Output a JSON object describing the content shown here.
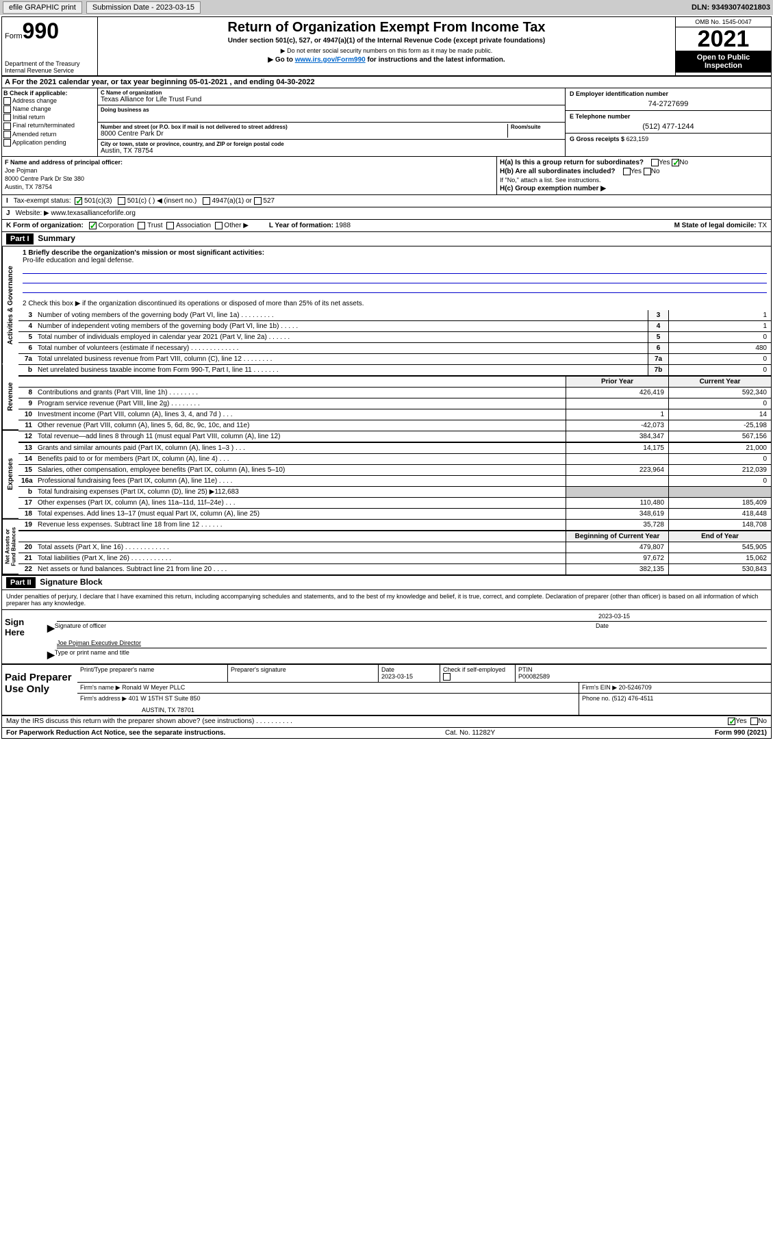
{
  "toolbar": {
    "efile": "efile GRAPHIC print",
    "subdate_lbl": "Submission Date - 2023-03-15",
    "dln": "DLN: 93493074021803"
  },
  "header": {
    "form_word": "Form",
    "form_num": "990",
    "dept": "Department of the Treasury\nInternal Revenue Service",
    "title": "Return of Organization Exempt From Income Tax",
    "sub": "Under section 501(c), 527, or 4947(a)(1) of the Internal Revenue Code (except private foundations)",
    "note1": "▶ Do not enter social security numbers on this form as it may be made public.",
    "note2_pre": "▶ Go to ",
    "note2_link": "www.irs.gov/Form990",
    "note2_post": " for instructions and the latest information.",
    "omb": "OMB No. 1545-0047",
    "year": "2021",
    "inspect": "Open to Public Inspection"
  },
  "section_a": "A For the 2021 calendar year, or tax year beginning 05-01-2021   , and ending 04-30-2022",
  "section_b": {
    "lbl": "B Check if applicable:",
    "opts": [
      "Address change",
      "Name change",
      "Initial return",
      "Final return/terminated",
      "Amended return",
      "Application pending"
    ]
  },
  "section_c": {
    "name_lbl": "C Name of organization",
    "name": "Texas Alliance for Life Trust Fund",
    "dba_lbl": "Doing business as",
    "addr_lbl": "Number and street (or P.O. box if mail is not delivered to street address)",
    "room_lbl": "Room/suite",
    "addr": "8000 Centre Park Dr",
    "city_lbl": "City or town, state or province, country, and ZIP or foreign postal code",
    "city": "Austin, TX  78754"
  },
  "section_d": {
    "lbl": "D Employer identification number",
    "val": "74-2727699"
  },
  "section_e": {
    "lbl": "E Telephone number",
    "val": "(512) 477-1244"
  },
  "section_g": {
    "lbl": "G Gross receipts $",
    "val": "623,159"
  },
  "section_f": {
    "lbl": "F Name and address of principal officer:",
    "name": "Joe Pojman",
    "addr1": "8000 Centre Park Dr Ste 380",
    "addr2": "Austin, TX  78754"
  },
  "section_h": {
    "ha": "H(a)  Is this a group return for subordinates?",
    "ha_ans": "No",
    "hb": "H(b)  Are all subordinates included?",
    "hb_note": "If \"No,\" attach a list. See instructions.",
    "hc": "H(c)  Group exemption number ▶"
  },
  "section_i": {
    "lead": "I",
    "lbl": "Tax-exempt status:",
    "o1": "501(c)(3)",
    "o2": "501(c) (  ) ◀ (insert no.)",
    "o3": "4947(a)(1) or",
    "o4": "527"
  },
  "section_j": {
    "lead": "J",
    "lbl": "Website: ▶",
    "val": "www.texasallianceforlife.org"
  },
  "section_k": {
    "lead": "K Form of organization:",
    "o1": "Corporation",
    "o2": "Trust",
    "o3": "Association",
    "o4": "Other ▶",
    "l_lbl": "L Year of formation:",
    "l_val": "1988",
    "m_lbl": "M State of legal domicile:",
    "m_val": "TX"
  },
  "part1": {
    "tag": "Part I",
    "title": "Summary"
  },
  "summary": {
    "gov_tab": "Activities & Governance",
    "rev_tab": "Revenue",
    "exp_tab": "Expenses",
    "net_tab": "Net Assets or Fund Balances",
    "q1_lbl": "1   Briefly describe the organization's mission or most significant activities:",
    "q1_val": "Pro-life education and legal defense.",
    "q2": "2   Check this box ▶      if the organization discontinued its operations or disposed of more than 25% of its net assets.",
    "rows_gov": [
      {
        "n": "3",
        "d": "Number of voting members of the governing body (Part VI, line 1a)  .   .   .   .   .   .   .   .   .",
        "b": "3",
        "v": "1"
      },
      {
        "n": "4",
        "d": "Number of independent voting members of the governing body (Part VI, line 1b)  .   .   .   .   .",
        "b": "4",
        "v": "1"
      },
      {
        "n": "5",
        "d": "Total number of individuals employed in calendar year 2021 (Part V, line 2a)  .   .   .   .   .   .",
        "b": "5",
        "v": "0"
      },
      {
        "n": "6",
        "d": "Total number of volunteers (estimate if necessary)  .   .   .   .   .   .   .   .   .   .   .   .   .",
        "b": "6",
        "v": "480"
      },
      {
        "n": "7a",
        "d": "Total unrelated business revenue from Part VIII, column (C), line 12  .   .   .   .   .   .   .   .",
        "b": "7a",
        "v": "0"
      },
      {
        "n": "b",
        "d": "Net unrelated business taxable income from Form 990-T, Part I, line 11  .   .   .   .   .   .   .",
        "b": "7b",
        "v": "0"
      }
    ],
    "col_hdr": {
      "p": "Prior Year",
      "c": "Current Year"
    },
    "rows_rev": [
      {
        "n": "8",
        "d": "Contributions and grants (Part VIII, line 1h)  .   .   .   .   .   .   .   .",
        "p": "426,419",
        "c": "592,340"
      },
      {
        "n": "9",
        "d": "Program service revenue (Part VIII, line 2g)  .   .   .   .   .   .   .   .",
        "p": "",
        "c": "0"
      },
      {
        "n": "10",
        "d": "Investment income (Part VIII, column (A), lines 3, 4, and 7d )  .   .   .",
        "p": "1",
        "c": "14"
      },
      {
        "n": "11",
        "d": "Other revenue (Part VIII, column (A), lines 5, 6d, 8c, 9c, 10c, and 11e)",
        "p": "-42,073",
        "c": "-25,198"
      },
      {
        "n": "12",
        "d": "Total revenue—add lines 8 through 11 (must equal Part VIII, column (A), line 12)",
        "p": "384,347",
        "c": "567,156"
      }
    ],
    "rows_exp": [
      {
        "n": "13",
        "d": "Grants and similar amounts paid (Part IX, column (A), lines 1–3 )  .   .   .",
        "p": "14,175",
        "c": "21,000"
      },
      {
        "n": "14",
        "d": "Benefits paid to or for members (Part IX, column (A), line 4)  .   .   .",
        "p": "",
        "c": "0"
      },
      {
        "n": "15",
        "d": "Salaries, other compensation, employee benefits (Part IX, column (A), lines 5–10)",
        "p": "223,964",
        "c": "212,039"
      },
      {
        "n": "16a",
        "d": "Professional fundraising fees (Part IX, column (A), line 11e)  .   .   .   .",
        "p": "",
        "c": "0"
      },
      {
        "n": "b",
        "d": "Total fundraising expenses (Part IX, column (D), line 25) ▶112,683",
        "p": "GREY",
        "c": "GREY"
      },
      {
        "n": "17",
        "d": "Other expenses (Part IX, column (A), lines 11a–11d, 11f–24e)  .   .   .",
        "p": "110,480",
        "c": "185,409"
      },
      {
        "n": "18",
        "d": "Total expenses. Add lines 13–17 (must equal Part IX, column (A), line 25)",
        "p": "348,619",
        "c": "418,448"
      },
      {
        "n": "19",
        "d": "Revenue less expenses. Subtract line 18 from line 12  .   .   .   .   .   .",
        "p": "35,728",
        "c": "148,708"
      }
    ],
    "col_hdr2": {
      "p": "Beginning of Current Year",
      "c": "End of Year"
    },
    "rows_net": [
      {
        "n": "20",
        "d": "Total assets (Part X, line 16)  .   .   .   .   .   .   .   .   .   .   .   .",
        "p": "479,807",
        "c": "545,905"
      },
      {
        "n": "21",
        "d": "Total liabilities (Part X, line 26)  .   .   .   .   .   .   .   .   .   .   .",
        "p": "97,672",
        "c": "15,062"
      },
      {
        "n": "22",
        "d": "Net assets or fund balances. Subtract line 21 from line 20  .   .   .   .",
        "p": "382,135",
        "c": "530,843"
      }
    ]
  },
  "part2": {
    "tag": "Part II",
    "title": "Signature Block"
  },
  "sig": {
    "intro": "Under penalties of perjury, I declare that I have examined this return, including accompanying schedules and statements, and to the best of my knowledge and belief, it is true, correct, and complete. Declaration of preparer (other than officer) is based on all information of which preparer has any knowledge.",
    "here": "Sign Here",
    "date": "2023-03-15",
    "l1": "Signature of officer",
    "l1r": "Date",
    "l2": "Joe Pojman  Executive Director",
    "l2b": "Type or print name and title"
  },
  "prep": {
    "lbl": "Paid Preparer Use Only",
    "h1": "Print/Type preparer's name",
    "h2": "Preparer's signature",
    "h3": "Date",
    "h3v": "2023-03-15",
    "h4": "Check       if self-employed",
    "h5": "PTIN",
    "h5v": "P00082589",
    "firm_lbl": "Firm's name      ▶",
    "firm": "Ronald W Meyer PLLC",
    "ein_lbl": "Firm's EIN ▶",
    "ein": "20-5246709",
    "addr_lbl": "Firm's address ▶",
    "addr": "401 W 15TH ST Suite 850",
    "addr2": "AUSTIN, TX  78701",
    "ph_lbl": "Phone no.",
    "ph": "(512) 476-4511"
  },
  "discuss": {
    "q": "May the IRS discuss this return with the preparer shown above? (see instructions)  .   .   .   .   .   .   .   .   .   .",
    "yes": "Yes",
    "no": "No"
  },
  "footer": {
    "l": "For Paperwork Reduction Act Notice, see the separate instructions.",
    "m": "Cat. No. 11282Y",
    "r": "Form 990 (2021)"
  }
}
